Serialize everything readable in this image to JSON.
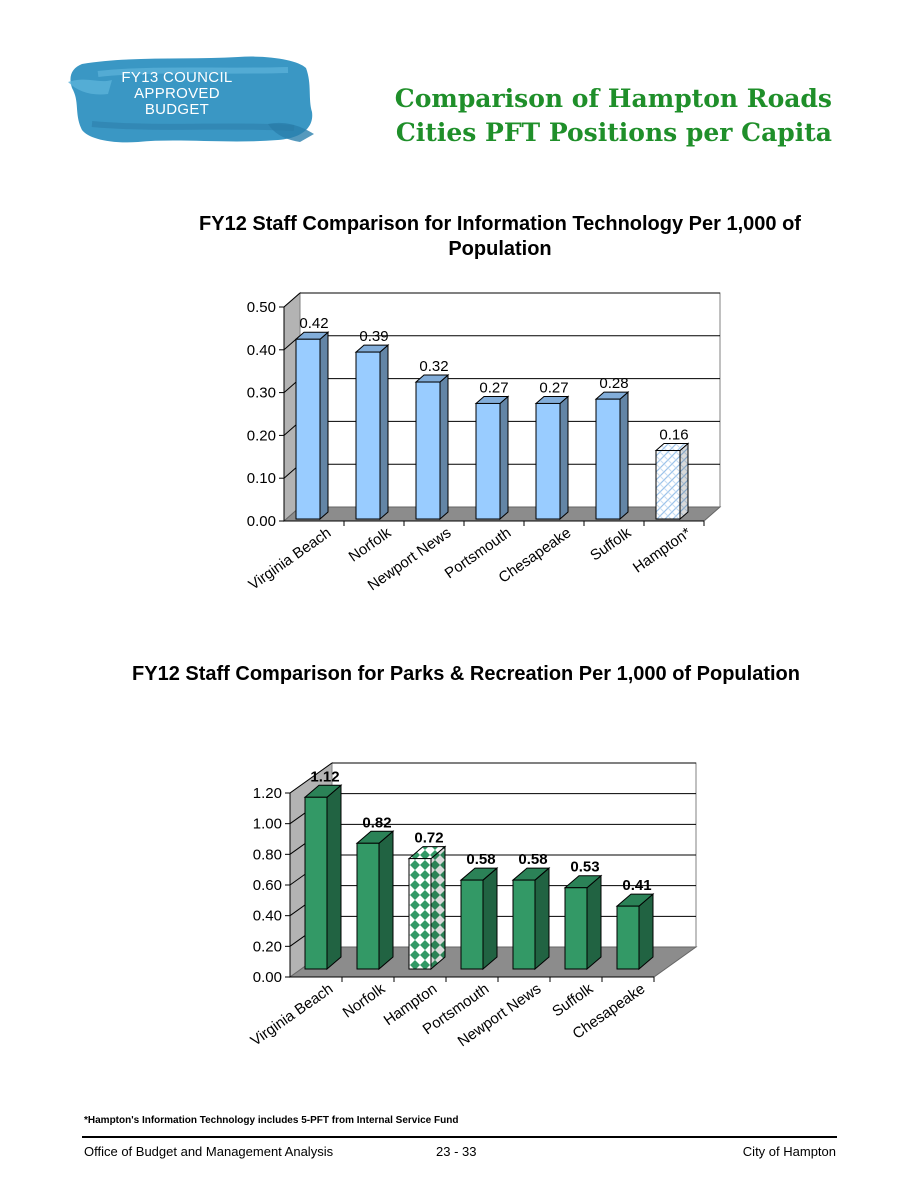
{
  "header": {
    "badge_lines": [
      "FY13 COUNCIL",
      "APPROVED",
      "BUDGET"
    ],
    "title_lines": [
      "Comparison of Hampton Roads",
      "Cities PFT Positions per Capita"
    ],
    "title_color": "#1f8f2a",
    "badge_color": "#3a97c4"
  },
  "chart_data": [
    {
      "type": "bar",
      "title": "FY12 Staff Comparison for Information Technology Per 1,000 of Population",
      "categories": [
        "Virginia Beach",
        "Norfolk",
        "Newport News",
        "Portsmouth",
        "Chesapeake",
        "Suffolk",
        "Hampton*"
      ],
      "values": [
        0.42,
        0.39,
        0.32,
        0.27,
        0.27,
        0.28,
        0.16
      ],
      "value_labels": [
        "0.42",
        "0.39",
        "0.32",
        "0.27",
        "0.27",
        "0.28",
        "0.16"
      ],
      "y_ticks": [
        "0.00",
        "0.10",
        "0.20",
        "0.30",
        "0.40",
        "0.50"
      ],
      "ylim": [
        0,
        0.5
      ],
      "grid": true,
      "bar_color": "#99ccff",
      "highlight_category": "Hampton*",
      "highlight_pattern": "light-hatch"
    },
    {
      "type": "bar",
      "title": "FY12 Staff Comparison for Parks & Recreation Per 1,000 of Population",
      "categories": [
        "Virginia Beach",
        "Norfolk",
        "Hampton",
        "Portsmouth",
        "Newport News",
        "Suffolk",
        "Chesapeake"
      ],
      "values": [
        1.12,
        0.82,
        0.72,
        0.58,
        0.58,
        0.53,
        0.41
      ],
      "value_labels": [
        "1.12",
        "0.82",
        "0.72",
        "0.58",
        "0.58",
        "0.53",
        "0.41"
      ],
      "y_ticks": [
        "0.00",
        "0.20",
        "0.40",
        "0.60",
        "0.80",
        "1.00",
        "1.20"
      ],
      "ylim": [
        0,
        1.2
      ],
      "grid": true,
      "bar_color": "#339966",
      "highlight_category": "Hampton",
      "highlight_pattern": "checker"
    }
  ],
  "footnote": "*Hampton's Information Technology includes 5-PFT from Internal Service Fund",
  "footer": {
    "left": "Office of Budget and Management Analysis",
    "center": "23 - 33",
    "right": "City of Hampton"
  }
}
